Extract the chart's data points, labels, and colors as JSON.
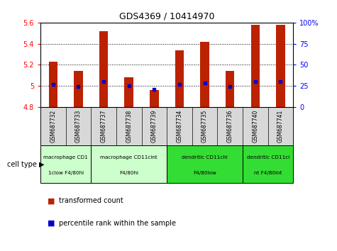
{
  "title": "GDS4369 / 10414970",
  "samples": [
    "GSM687732",
    "GSM687733",
    "GSM687737",
    "GSM687738",
    "GSM687739",
    "GSM687734",
    "GSM687735",
    "GSM687736",
    "GSM687740",
    "GSM687741"
  ],
  "transformed_count": [
    5.23,
    5.14,
    5.52,
    5.08,
    4.96,
    5.34,
    5.42,
    5.14,
    5.58,
    5.58
  ],
  "percentile_rank": [
    27,
    24,
    30,
    25,
    21,
    27,
    29,
    24,
    30,
    30
  ],
  "ylim_left": [
    4.8,
    5.6
  ],
  "ylim_right": [
    0,
    100
  ],
  "yticks_left": [
    4.8,
    5.0,
    5.2,
    5.4,
    5.6
  ],
  "yticks_right": [
    0,
    25,
    50,
    75,
    100
  ],
  "bar_color": "#bb2200",
  "dot_color": "#0000cc",
  "cell_types": [
    {
      "label": "macrophage CD1\n1clow F4/80hi",
      "start": 0,
      "end": 2,
      "color": "#ccffcc"
    },
    {
      "label": "macrophage CD11cint\nF4/80hi",
      "start": 2,
      "end": 5,
      "color": "#ccffcc"
    },
    {
      "label": "dendritic CD11chi\nF4/80low",
      "start": 5,
      "end": 8,
      "color": "#33dd33"
    },
    {
      "label": "dendritic CD11ci\nnt F4/80int",
      "start": 8,
      "end": 10,
      "color": "#33dd33"
    }
  ],
  "legend_red": "transformed count",
  "legend_blue": "percentile rank within the sample",
  "cell_type_label": "cell type",
  "sample_bg_color": "#d8d8d8"
}
